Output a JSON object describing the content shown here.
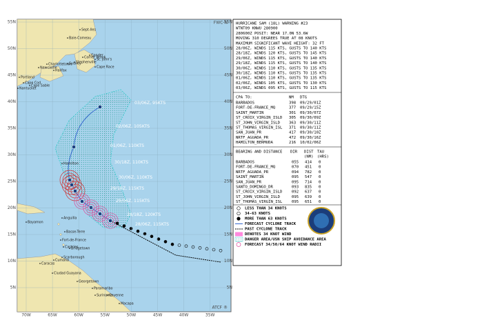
{
  "map": {
    "corner_label": "FWC-N",
    "footer_label": "ATCF ®",
    "lat_labels": [
      "55N",
      "50N",
      "45N",
      "40N",
      "35N",
      "30N",
      "25N",
      "20N",
      "15N",
      "10N",
      "5N"
    ],
    "lon_labels": [
      "70W",
      "65W",
      "60W",
      "55W",
      "50W",
      "45W",
      "40W",
      "35W"
    ],
    "places": [
      "Sept-Iles",
      "Corner Brook",
      "Stephenville",
      "Gander",
      "St. John's",
      "Cape Race",
      "Halifax",
      "Sydney",
      "Newcastle",
      "Charlottetown",
      "Portland",
      "Cape Sable",
      "Nantucket",
      "Cape Cod",
      "Baie-Comeau",
      "Hamilton",
      "Bayamon",
      "Anguilla",
      "Basse-Terre",
      "Fort-de-France",
      "Castries",
      "Bridgetown",
      "Scarborough",
      "Caracas",
      "Cumana",
      "Ciudad Guayana",
      "Georgetown",
      "Paramaribo",
      "Suriname",
      "Cayenne",
      "Macapa"
    ],
    "track_labels": [
      "03/06Z, 95KTS",
      "02/06Z, 105KTS",
      "01/06Z, 110KTS",
      "30/18Z, 110KTS",
      "30/06Z, 110KTS",
      "29/18Z, 115KTS",
      "29/06Z, 115KTS",
      "28/18Z, 120KTS",
      "28/06Z, 115KTS"
    ]
  },
  "warning": {
    "lines": [
      "HURRICANE SAM (18L) WARNING #23",
      "WTNT09 KNWU 280900",
      "280600Z POSIT: NEAR 17.0N 53.6W",
      "MOVING 310 DEGREES TRUE AT 08 KNOTS",
      "MAXIMUM SIGNIFICANT WAVE HEIGHT: 32 FT",
      "28/06Z, WINDS 115 KTS, GUSTS TO 140 KTS",
      "28/18Z, WINDS 120 KTS, GUSTS TO 145 KTS",
      "29/06Z, WINDS 115 KTS, GUSTS TO 140 KTS",
      "29/18Z, WINDS 115 KTS, GUSTS TO 140 KTS",
      "30/06Z, WINDS 110 KTS, GUSTS TO 135 KTS",
      "30/18Z, WINDS 110 KTS, GUSTS TO 135 KTS",
      "01/06Z, WINDS 110 KTS, GUSTS TO 135 KTS",
      "02/06Z, WINDS 105 KTS, GUSTS TO 130 KTS",
      "03/06Z, WINDS 095 KTS, GUSTS TO 115 KTS"
    ]
  },
  "cpa": {
    "header": [
      "CPA TO:",
      "NM",
      "DTG"
    ],
    "rows": [
      [
        "BARBADOS",
        "398",
        "09/29/01Z"
      ],
      [
        "FORT-DE-FRANCE_MQ",
        "377",
        "09/29/15Z"
      ],
      [
        "SAINT_MARTIN",
        "301",
        "09/30/07Z"
      ],
      [
        "ST_CROIX_VIRGIN_ISLD",
        "305",
        "09/30/09Z"
      ],
      [
        "ST_JOHN_VIRGIN_ISLD",
        "363",
        "09/30/11Z"
      ],
      [
        "ST_THOMAS_VIRGIN_ISL",
        "371",
        "09/30/11Z"
      ],
      [
        "SAN_JUAN_PR",
        "417",
        "09/30/10Z"
      ],
      [
        "NRTF_AGUADA_PR",
        "472",
        "09/30/16Z"
      ],
      [
        "HAMILTON_BERMUDA",
        "216",
        "10/02/06Z"
      ]
    ]
  },
  "bearing": {
    "header": [
      "BEARING AND DISTANCE",
      "DIR",
      "DIST",
      "TAU"
    ],
    "subheader": [
      "(NM)",
      "(HRS)"
    ],
    "rows": [
      [
        "BARBADOS",
        "055",
        "414",
        "0"
      ],
      [
        "FORT-DE-FRANCE_MQ",
        "070",
        "451",
        "0"
      ],
      [
        "NRTF_AGUADA_PR",
        "094",
        "782",
        "0"
      ],
      [
        "SAINT_MARTIN",
        "095",
        "547",
        "0"
      ],
      [
        "SAN_JUAN_PR",
        "095",
        "714",
        "0"
      ],
      [
        "SANTO_DOMINGO_DR",
        "093",
        "835",
        "0"
      ],
      [
        "ST_CROIX_VIRGIN_ISLD",
        "092",
        "637",
        "0"
      ],
      [
        "ST_JOHN_VIRGIN_ISLD",
        "095",
        "639",
        "0"
      ],
      [
        "ST_THOMAS_VIRGIN_ISL",
        "095",
        "651",
        "0"
      ]
    ]
  },
  "legend": [
    "LESS THAN 34 KNOTS",
    "34-63 KNOTS",
    "MORE THAN 63 KNOTS",
    "FORECAST CYCLONE TRACK",
    "PAST CYCLONE TRACK",
    "DENOTES 34 KNOT WIND",
    "DANGER AREA/USN SHIP AVOIDANCE AREA",
    "FORECAST 34/50/64 KNOT WIND RADII"
  ]
}
